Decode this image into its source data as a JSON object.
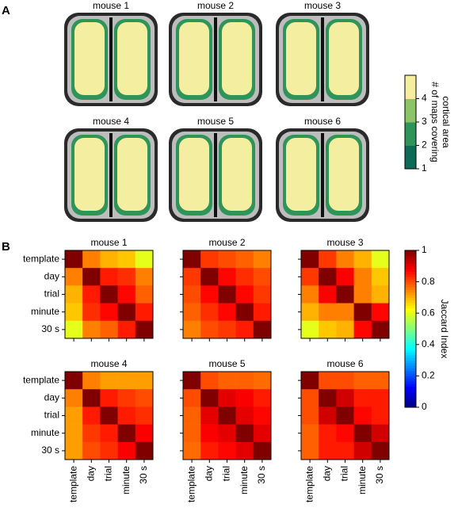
{
  "chart_data": [
    {
      "type": "map",
      "panel": "A",
      "panels": [
        {
          "title": "mouse 1"
        },
        {
          "title": "mouse 2"
        },
        {
          "title": "mouse 3"
        },
        {
          "title": "mouse 4"
        },
        {
          "title": "mouse 5"
        },
        {
          "title": "mouse 6"
        }
      ],
      "colorbar_label": [
        "# of maps covering",
        "cortical area"
      ],
      "clim": [
        1,
        5
      ],
      "cticks": [
        1,
        2,
        3,
        4
      ],
      "colors": [
        "#0f6b58",
        "#2f9459",
        "#8dc46a",
        "#f4efa0"
      ]
    },
    {
      "type": "heatmap",
      "panel": "B",
      "categories": [
        "template",
        "day",
        "trial",
        "minute",
        "30 s"
      ],
      "panels": [
        {
          "title": "mouse 1",
          "values": [
            [
              1,
              0.75,
              0.7,
              0.68,
              0.6
            ],
            [
              0.75,
              1,
              0.85,
              0.83,
              0.75
            ],
            [
              0.7,
              0.85,
              1,
              0.87,
              0.78
            ],
            [
              0.68,
              0.83,
              0.87,
              1,
              0.85
            ],
            [
              0.6,
              0.75,
              0.78,
              0.85,
              1
            ]
          ]
        },
        {
          "title": "mouse 2",
          "values": [
            [
              1,
              0.82,
              0.8,
              0.78,
              0.75
            ],
            [
              0.82,
              1,
              0.87,
              0.83,
              0.8
            ],
            [
              0.8,
              0.87,
              1,
              0.87,
              0.82
            ],
            [
              0.78,
              0.83,
              0.87,
              1,
              0.85
            ],
            [
              0.75,
              0.8,
              0.82,
              0.85,
              1
            ]
          ]
        },
        {
          "title": "mouse 3",
          "values": [
            [
              1,
              0.82,
              0.75,
              0.7,
              0.6
            ],
            [
              0.82,
              1,
              0.88,
              0.75,
              0.68
            ],
            [
              0.75,
              0.88,
              1,
              0.75,
              0.7
            ],
            [
              0.7,
              0.75,
              0.75,
              1,
              0.87
            ],
            [
              0.6,
              0.68,
              0.7,
              0.87,
              1
            ]
          ]
        },
        {
          "title": "mouse 4",
          "values": [
            [
              1,
              0.75,
              0.72,
              0.72,
              0.72
            ],
            [
              0.75,
              1,
              0.85,
              0.82,
              0.8
            ],
            [
              0.72,
              0.85,
              1,
              0.85,
              0.83
            ],
            [
              0.72,
              0.82,
              0.85,
              1,
              0.88
            ],
            [
              0.72,
              0.8,
              0.83,
              0.88,
              1
            ]
          ]
        },
        {
          "title": "mouse 5",
          "values": [
            [
              1,
              0.8,
              0.78,
              0.78,
              0.77
            ],
            [
              0.8,
              1,
              0.9,
              0.88,
              0.85
            ],
            [
              0.78,
              0.9,
              1,
              0.9,
              0.87
            ],
            [
              0.78,
              0.88,
              0.9,
              1,
              0.9
            ],
            [
              0.77,
              0.85,
              0.87,
              0.9,
              1
            ]
          ]
        },
        {
          "title": "mouse 6",
          "values": [
            [
              1,
              0.8,
              0.8,
              0.78,
              0.78
            ],
            [
              0.8,
              1,
              0.92,
              0.85,
              0.85
            ],
            [
              0.8,
              0.92,
              1,
              0.87,
              0.85
            ],
            [
              0.78,
              0.85,
              0.87,
              1,
              0.92
            ],
            [
              0.78,
              0.85,
              0.85,
              0.92,
              1
            ]
          ]
        }
      ],
      "colorbar_label": "Jaccard Index",
      "clim": [
        0,
        1
      ],
      "cticks": [
        0,
        0.2,
        0.4,
        0.6,
        0.8,
        1
      ]
    }
  ]
}
